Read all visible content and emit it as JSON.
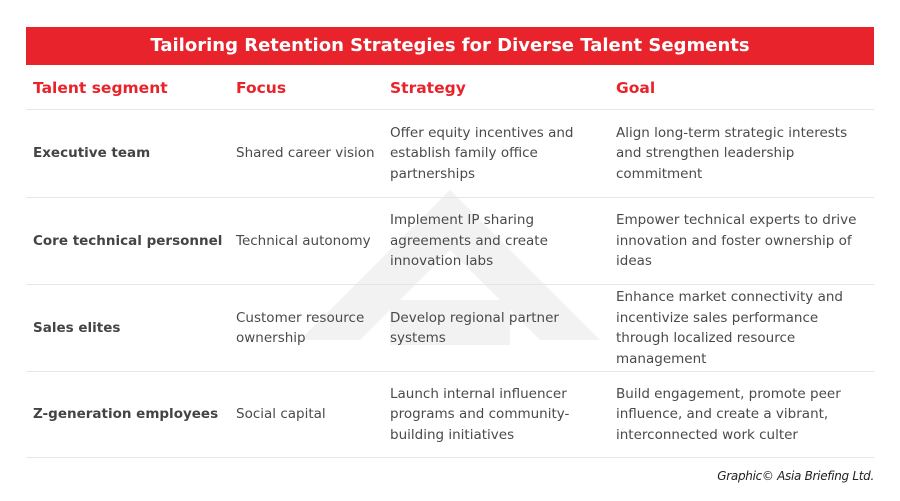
{
  "title": "Tailoring Retention Strategies for Diverse Talent Segments",
  "columns": [
    "Talent segment",
    "Focus",
    "Strategy",
    "Goal"
  ],
  "rows": [
    {
      "segment": "Executive team",
      "focus": "Shared career vision",
      "strategy": "Offer equity incentives and establish family office partnerships",
      "goal": "Align long-term strategic interests and strengthen leadership commitment"
    },
    {
      "segment": "Core technical personnel",
      "focus": "Technical autonomy",
      "strategy": "Implement IP sharing agreements and create innovation labs",
      "goal": "Empower technical experts to drive innovation and foster ownership of ideas"
    },
    {
      "segment": "Sales elites",
      "focus": "Customer resource ownership",
      "strategy": "Develop regional partner systems",
      "goal": "Enhance market connectivity and incentivize sales performance through localized resource management"
    },
    {
      "segment": "Z-generation employees",
      "focus": "Social capital",
      "strategy": "Launch internal influencer programs and community-building initiatives",
      "goal": "Build engagement, promote peer influence, and create a vibrant, interconnected work culter"
    }
  ],
  "credit": "Graphic© Asia Briefing Ltd.",
  "colors": {
    "accent": "#e8232b"
  }
}
